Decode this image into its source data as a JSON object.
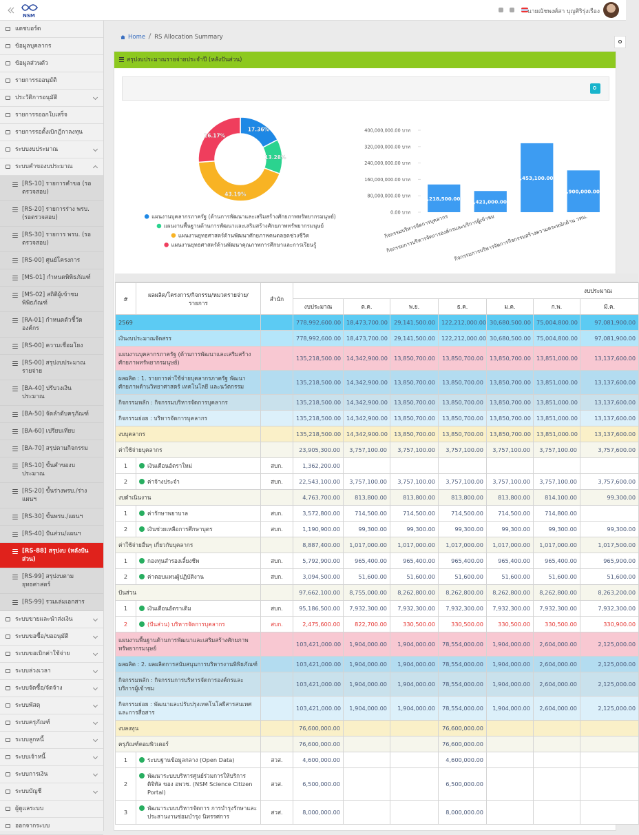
{
  "topbar": {
    "logo": "NSM",
    "user": "นายณัชพงศ์สา บุญศิริรุ่งเรือง"
  },
  "sidebar": {
    "menu_top": [
      "แดชบอร์ด",
      "ข้อมูลบุคลากร",
      "ข้อมูลส่วนตัว",
      "รายการรออนุมัติ",
      "ประวัติการอนุมัติ",
      "รายการรออกใบเสร็จ",
      "รายการรอตั้งเบิกฎีกาลงทุน",
      "ระบบงบประมาณ",
      "ระบบคำของบประมาณ"
    ],
    "submenu": [
      "[RS-10] รายการคำขอ (รอตรวจสอบ)",
      "[RS-20] รายการร่าง พรบ. (รอตรวจสอบ)",
      "[RS-30] รายการ พรบ. (รอตรวจสอบ)",
      "[RS-00] ศูนย์โครงการ",
      "[MS-01] กำหนดพิพิธภัณฑ์",
      "[MS-02] สถิติผู้เข้าชมพิพิธภัณฑ์",
      "[RA-01] กำหนดตัวชี้วัดองค์กร",
      "[RS-00] ความเชื่อมโยง",
      "[RS-00] สรุปงบประมาณรายจ่าย",
      "[BA-40] ปรับวงเงินประมาณ",
      "[BA-50] จัดลำดับครุภัณฑ์",
      "[BA-60] เปรียบเทียบ",
      "[BA-70] สรุปตามกิจกรรม",
      "[RS-10] ขั้นคำของบประมาณ",
      "[RS-20] ขั้นร่างพรบ./ร่างแผนฯ",
      "[RS-30] ขั้นพรบ./แผนฯ",
      "[RS-40] ปันส่วน/แผนฯ",
      "[RS-88] สรุปงบ (หลังปันส่วน)",
      "[RS-99] สรุปงบตามยุทธศาสตร์",
      "[RS-99] รวมเล่มเอกสาร"
    ],
    "selected": 17,
    "menu_bottom": [
      "ระบบขายและนำส่งเงิน",
      "ระบบขอซื้อ/ขออนุมัติ",
      "ระบบขอเบิกค่าใช้จ่าย",
      "ระบบล่วงเวลา",
      "ระบบจัดซื้อ/จัดจ้าง",
      "ระบบพัสดุ",
      "ระบบครุภัณฑ์",
      "ระบบลูกหนี้",
      "ระบบเจ้าหนี้",
      "ระบบการเงิน",
      "ระบบบัญชี",
      "ผู้ดูแลระบบ",
      "ออกจากระบบ"
    ]
  },
  "breadcrumb": [
    "Home",
    "RS Allocation Summary"
  ],
  "panel_title": "สรุปงบประมาณรายจ่ายประจำปี (หลังปันส่วน)",
  "chart_data": [
    {
      "type": "doughnut",
      "categories": [
        "แผนงานบุคลากรภาครัฐ (ด้านการพัฒนาและเสริมสร้างศักยภาพทรัพยากรมนุษย์)",
        "แผนงานพื้นฐานด้านการพัฒนาและเสริมสร้างศักยภาพทรัพยากรมนุษย์",
        "แผนงานยุทธศาสตร์ด้านพัฒนาศักยภาพคนตลอดช่วงชีวิต",
        "แผนงานยุทธศาสตร์ด้านพัฒนาคุณภาพการศึกษาและการเรียนรู้"
      ],
      "values": [
        17.36,
        13.28,
        43.19,
        26.17
      ],
      "value_labels": [
        "17.36%",
        "13.28%",
        "43.19%",
        "26.17%"
      ],
      "colors": [
        "#1e88e5",
        "#2bd38f",
        "#f8b324",
        "#ef3e5d"
      ]
    },
    {
      "type": "bar",
      "categories": [
        "กิจกรรมบริหารจัดการบุคลากร",
        "กิจกรรมการบริหารจัดการองค์กรและบริการผู้เข้าชม",
        null,
        "กิจกรรมการบริหารจัดการกิจกรรมสร้างความตระหนักด้าน วทน."
      ],
      "values": [
        135218500,
        103421000,
        336453100,
        203900000
      ],
      "value_labels": [
        "135,218,500.00 บาท",
        "103,421,000.00 บาท",
        "336,453,100.00 บาท",
        "203,900,000.00 บาท"
      ],
      "color": "#3d9cf2",
      "ylim": [
        0,
        400000000
      ],
      "yticks": [
        {
          "value": 0,
          "label": "0.00 บาท"
        },
        {
          "value": 80000000,
          "label": "80,000,000.00 บาท"
        },
        {
          "value": 160000000,
          "label": "160,000,000.00 บาท"
        },
        {
          "value": 240000000,
          "label": "240,000,000.00 บาท"
        },
        {
          "value": 320000000,
          "label": "320,000,000.00 บาท"
        },
        {
          "value": 400000000,
          "label": "400,000,000.00 บาท"
        }
      ],
      "grid": false
    }
  ],
  "table": {
    "head": [
      "#",
      "ผลผลิต/โครงการ/กิจกรรม/หมวดรายจ่าย/รายการ",
      "สำนัก"
    ],
    "group": "งบประมาณ",
    "subhead": [
      "งบประมาณ",
      "ต.ค.",
      "พ.ย.",
      "ธ.ค.",
      "ม.ค.",
      "ก.พ.",
      "มี.ค."
    ],
    "rows": [
      {
        "color": "#5ccbf3",
        "cells": [
          null,
          "2569",
          null,
          "778,992,600.00",
          "18,473,700.00",
          "29,141,500.00",
          "122,212,000.00",
          "30,680,500.00",
          "75,004,800.00",
          "97,081,900.00"
        ]
      },
      {
        "color": "#b5e6fa",
        "cells": [
          null,
          "เงินงบประมาณจัดสรร",
          null,
          "778,992,600.00",
          "18,473,700.00",
          "29,141,500.00",
          "122,212,000.00",
          "30,680,500.00",
          "75,004,800.00",
          "97,081,900.00"
        ]
      },
      {
        "color": "#f8c8d2",
        "cells": [
          null,
          "แผนงานบุคลากรภาครัฐ (ด้านการพัฒนาและเสริมสร้างศักยภาพทรัพยากรมนุษย์)",
          null,
          "135,218,500.00",
          "14,342,900.00",
          "13,850,700.00",
          "13,850,700.00",
          "13,850,700.00",
          "13,851,000.00",
          "13,137,600.00"
        ]
      },
      {
        "color": "#b3dcf0",
        "cells": [
          null,
          "ผลผลิต : 1. รายการค่าใช้จ่ายบุคลากรภาครัฐ พัฒนาศักยภาพด้านวิทยาศาสตร์ เทคโนโลยี และนวัตกรรม",
          null,
          "135,218,500.00",
          "14,342,900.00",
          "13,850,700.00",
          "13,850,700.00",
          "13,850,700.00",
          "13,851,000.00",
          "13,137,600.00"
        ]
      },
      {
        "color": "#c9e1ec",
        "cells": [
          null,
          "กิจกรรมหลัก : กิจกรรมบริหารจัดการบุคลากร",
          null,
          "135,218,500.00",
          "14,342,900.00",
          "13,850,700.00",
          "13,850,700.00",
          "13,850,700.00",
          "13,851,000.00",
          "13,137,600.00"
        ]
      },
      {
        "color": "#dcf0fa",
        "cells": [
          null,
          "กิจกรรมย่อย : บริหารจัดการบุคลากร",
          null,
          "135,218,500.00",
          "14,342,900.00",
          "13,850,700.00",
          "13,850,700.00",
          "13,850,700.00",
          "13,851,000.00",
          "13,137,600.00"
        ]
      },
      {
        "color": "#faf0c8",
        "cells": [
          null,
          "งบบุคลากร",
          null,
          "135,218,500.00",
          "14,342,900.00",
          "13,850,700.00",
          "13,850,700.00",
          "13,850,700.00",
          "13,851,000.00",
          "13,137,600.00"
        ]
      },
      {
        "color": "#f6f6ec",
        "cells": [
          null,
          "ค่าใช้จ่ายบุคลากร",
          null,
          "23,905,300.00",
          "3,757,100.00",
          "3,757,100.00",
          "3,757,100.00",
          "3,757,100.00",
          "3,757,100.00",
          "3,757,600.00"
        ]
      },
      {
        "color": "#ffffff",
        "cells": [
          "1",
          "เงินเดือนอัตราใหม่",
          "สบก.",
          "1,362,200.00",
          null,
          null,
          null,
          null,
          null,
          null
        ]
      },
      {
        "color": "#ffffff",
        "cells": [
          "2",
          "ค่าจ้างประจำ",
          "สบก.",
          "22,543,100.00",
          "3,757,100.00",
          "3,757,100.00",
          "3,757,100.00",
          "3,757,100.00",
          "3,757,100.00",
          "3,757,600.00"
        ]
      },
      {
        "color": "#f6f6ec",
        "cells": [
          null,
          "งบดำเนินงาน",
          null,
          "4,763,700.00",
          "813,800.00",
          "813,800.00",
          "813,800.00",
          "813,800.00",
          "814,100.00",
          "99,300.00"
        ]
      },
      {
        "color": "#ffffff",
        "cells": [
          "1",
          "ค่ารักษาพยาบาล",
          "สบก.",
          "3,572,800.00",
          "714,500.00",
          "714,500.00",
          "714,500.00",
          "714,500.00",
          "714,800.00",
          null
        ]
      },
      {
        "color": "#ffffff",
        "cells": [
          "2",
          "เงินช่วยเหลือการศึกษาบุตร",
          "สบก.",
          "1,190,900.00",
          "99,300.00",
          "99,300.00",
          "99,300.00",
          "99,300.00",
          "99,300.00",
          "99,300.00"
        ]
      },
      {
        "color": "#f6f6ec",
        "cells": [
          null,
          "ค่าใช้จ่ายอื่นๆ เกี่ยวกับบุคลากร",
          null,
          "8,887,400.00",
          "1,017,000.00",
          "1,017,000.00",
          "1,017,000.00",
          "1,017,000.00",
          "1,017,000.00",
          "1,017,500.00"
        ]
      },
      {
        "color": "#ffffff",
        "cells": [
          "1",
          "กองทุนสำรองเลี้ยงชีพ",
          "สบก.",
          "5,792,900.00",
          "965,400.00",
          "965,400.00",
          "965,400.00",
          "965,400.00",
          "965,400.00",
          "965,900.00"
        ]
      },
      {
        "color": "#ffffff",
        "cells": [
          "2",
          "ค่าตอบแทนผู้ปฏิบัติงาน",
          "สบก.",
          "3,094,500.00",
          "51,600.00",
          "51,600.00",
          "51,600.00",
          "51,600.00",
          "51,600.00",
          "51,600.00"
        ]
      },
      {
        "color": "#f6f6ec",
        "cells": [
          null,
          "ปันส่วน",
          null,
          "97,662,100.00",
          "8,755,000.00",
          "8,262,800.00",
          "8,262,800.00",
          "8,262,800.00",
          "8,262,800.00",
          "8,263,200.00"
        ]
      },
      {
        "color": "#ffffff",
        "cells": [
          "1",
          "เงินเดือนอัตราเดิม",
          "สบก.",
          "95,186,500.00",
          "7,932,300.00",
          "7,932,300.00",
          "7,932,300.00",
          "7,932,300.00",
          "7,932,300.00",
          "7,932,300.00"
        ]
      },
      {
        "color": "#ffffff",
        "text_color": "#e53935",
        "cells": [
          "2",
          "(ปันส่วน) บริหารจัดการบุคลากร",
          "สบก.",
          "2,475,600.00",
          "822,700.00",
          "330,500.00",
          "330,500.00",
          "330,500.00",
          "330,500.00",
          "330,900.00"
        ]
      },
      {
        "color": "#f8c8d2",
        "cells": [
          null,
          "แผนงานพื้นฐานด้านการพัฒนาและเสริมสร้างศักยภาพทรัพยากรมนุษย์",
          null,
          "103,421,000.00",
          "1,904,000.00",
          "1,904,000.00",
          "78,554,000.00",
          "1,904,000.00",
          "2,604,000.00",
          "2,125,000.00"
        ]
      },
      {
        "color": "#b3dcf0",
        "cells": [
          null,
          "ผลผลิต : 2. ผลผลิตการสนับสนุนการบริหารงานพิพิธภัณฑ์",
          null,
          "103,421,000.00",
          "1,904,000.00",
          "1,904,000.00",
          "78,554,000.00",
          "1,904,000.00",
          "2,604,000.00",
          "2,125,000.00"
        ]
      },
      {
        "color": "#c9e1ec",
        "cells": [
          null,
          "กิจกรรมหลัก : กิจกรรมการบริหารจัดการองค์กรและบริการผู้เข้าชม",
          null,
          "103,421,000.00",
          "1,904,000.00",
          "1,904,000.00",
          "78,554,000.00",
          "1,904,000.00",
          "2,604,000.00",
          "2,125,000.00"
        ]
      },
      {
        "color": "#dcf0fa",
        "cells": [
          null,
          "กิจกรรมย่อย : พัฒนาและปรับปรุงเทคโนโลยีสารสนเทศและการสื่อสาร",
          null,
          "103,421,000.00",
          "1,904,000.00",
          "1,904,000.00",
          "78,554,000.00",
          "1,904,000.00",
          "2,604,000.00",
          "2,125,000.00"
        ]
      },
      {
        "color": "#faf0c8",
        "cells": [
          null,
          "งบลงทุน",
          null,
          "76,600,000.00",
          null,
          null,
          "76,600,000.00",
          null,
          null,
          null
        ]
      },
      {
        "color": "#f6f6ec",
        "cells": [
          null,
          "ครุภัณฑ์คอมพิวเตอร์",
          null,
          "76,600,000.00",
          null,
          null,
          "76,600,000.00",
          null,
          null,
          null
        ]
      },
      {
        "color": "#ffffff",
        "cells": [
          "1",
          "ระบบฐานข้อมูลกลาง (Open Data)",
          "สวส.",
          "4,600,000.00",
          null,
          null,
          "4,600,000.00",
          null,
          null,
          null
        ]
      },
      {
        "color": "#ffffff",
        "cells": [
          "2",
          "พัฒนาระบบบริหารศูนย์ร่วมการให้บริการดิจิทัล ของ อพวช. (NSM Science Citizen Portal)",
          "สวส.",
          "6,500,000.00",
          null,
          null,
          "6,500,000.00",
          null,
          null,
          null
        ]
      },
      {
        "color": "#ffffff",
        "cells": [
          "3",
          "พัฒนาระบบบริหารจัดการ การบำรุงรักษาและประสานงานซ่อมบำรุง นิทรรศการ",
          "สวส.",
          "8,000,000.00",
          null,
          null,
          "8,000,000.00",
          null,
          null,
          null
        ]
      }
    ]
  }
}
